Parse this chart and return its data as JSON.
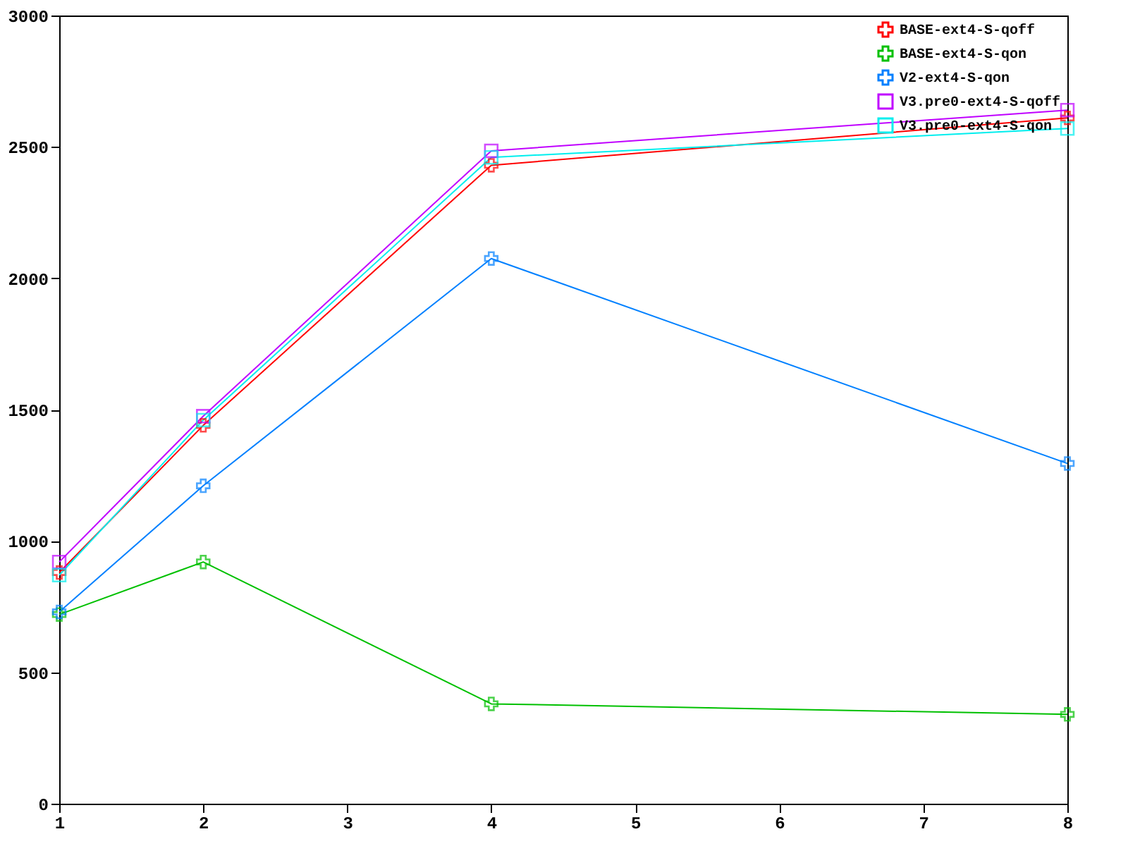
{
  "chart_data": {
    "type": "line",
    "x": [
      1,
      2,
      4,
      8
    ],
    "xlim": [
      1,
      8
    ],
    "xticks": [
      1,
      2,
      3,
      4,
      5,
      6,
      7,
      8
    ],
    "ylim": [
      0,
      3000
    ],
    "yticks": [
      0,
      500,
      1000,
      1500,
      2000,
      2500,
      3000
    ],
    "grid": false,
    "legend": "top right",
    "line_style": "solid",
    "series": [
      {
        "name": "BASE-ext4-S-qoff",
        "color": "#ff0000",
        "marker": "cross",
        "values": [
          880,
          1440,
          2430,
          2610
        ]
      },
      {
        "name": "BASE-ext4-S-qon",
        "color": "#00c000",
        "marker": "cross",
        "values": [
          720,
          920,
          380,
          340
        ]
      },
      {
        "name": "V2-ext4-S-qon",
        "color": "#0080ff",
        "marker": "cross",
        "values": [
          730,
          1210,
          2075,
          1295
        ]
      },
      {
        "name": "V3.pre0-ext4-S-qoff",
        "color": "#c000ff",
        "marker": "square",
        "values": [
          920,
          1475,
          2485,
          2640
        ]
      },
      {
        "name": "V3.pre0-ext4-S-qon",
        "color": "#00eeee",
        "marker": "square",
        "values": [
          870,
          1460,
          2460,
          2570
        ]
      }
    ]
  }
}
